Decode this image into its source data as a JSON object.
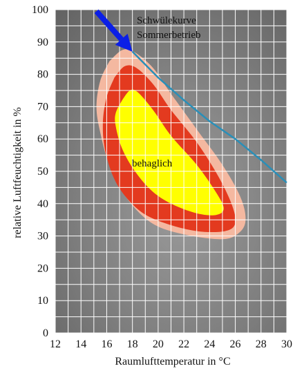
{
  "chart_data": {
    "type": "area",
    "xlabel": "Raumlufttemperatur in °C",
    "ylabel": "relative Luftfeuchtigkeit in %",
    "xlim": [
      12,
      30
    ],
    "ylim": [
      0,
      100
    ],
    "xticks": [
      "12",
      "14",
      "16",
      "18",
      "20",
      "22",
      "24",
      "26",
      "28",
      "30"
    ],
    "yticks": [
      "0",
      "10",
      "20",
      "30",
      "40",
      "50",
      "60",
      "70",
      "80",
      "90",
      "100"
    ],
    "grid": true,
    "annotations": {
      "curve_label_1": "Schwülekurve",
      "curve_label_2": "Sommerbetrieb",
      "comfort_label": "behaglich"
    },
    "sultriness_curve": {
      "color": "#2a8fb8",
      "x": [
        18,
        20,
        22,
        24,
        26,
        28,
        30
      ],
      "y": [
        87,
        79,
        72,
        65.5,
        60,
        53.5,
        46.5
      ]
    },
    "arrow": {
      "color": "#0b1fe6",
      "from": [
        15.2,
        99.5
      ],
      "to": [
        18,
        87
      ]
    },
    "zones": [
      {
        "color": "#f4b8a0",
        "x": [
          16.2,
          17.2,
          18.1,
          19.6,
          21,
          23,
          25,
          26.4,
          26.8,
          26.3,
          25,
          22,
          19.5,
          17.5,
          16.2,
          15.5,
          15.2,
          15.5,
          16.2
        ],
        "y": [
          84,
          87.5,
          87,
          82,
          74,
          63,
          52,
          42,
          35,
          31,
          29,
          30.5,
          34,
          42,
          52,
          62,
          70,
          78,
          84
        ]
      },
      {
        "color": "#e33a1f",
        "x": [
          16.6,
          17.4,
          18.3,
          19.6,
          21,
          23,
          24.6,
          25.7,
          26,
          25.2,
          23,
          20.5,
          18.5,
          16.8,
          15.9,
          15.7,
          16.0,
          16.6
        ],
        "y": [
          79,
          82.5,
          82,
          77,
          69,
          59,
          49,
          40,
          34,
          31.5,
          31.5,
          34,
          38,
          46,
          56,
          65,
          73,
          79
        ]
      },
      {
        "color": "#ffff00",
        "x": [
          17.2,
          17.8,
          18.4,
          19.6,
          21,
          23,
          24.5,
          25.1,
          24.5,
          23,
          21,
          19.5,
          18.2,
          17.2,
          16.7,
          16.7,
          17.2
        ],
        "y": [
          72,
          75,
          74.5,
          69,
          61,
          52,
          43.5,
          38.5,
          36.5,
          37,
          40,
          44,
          50,
          57,
          64,
          68,
          72
        ]
      }
    ]
  }
}
